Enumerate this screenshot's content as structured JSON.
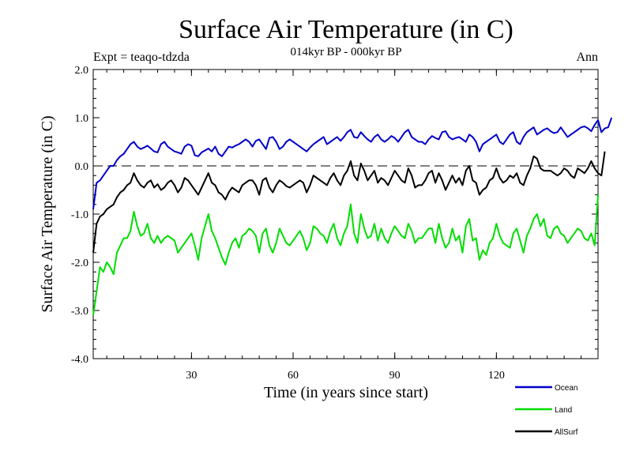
{
  "chart_data": {
    "type": "line",
    "title": "Surface Air Temperature (in C)",
    "subtitle": "014kyr BP - 000kyr BP",
    "experiment_label": "Expt = teaqo-tdzda",
    "season_label": "Ann",
    "xlabel": "Time (in years since start)",
    "ylabel": "Surface Air Temperature (in C)",
    "xlim": [
      1,
      150
    ],
    "ylim": [
      -4.0,
      2.0
    ],
    "x_ticks": [
      30,
      60,
      90,
      120
    ],
    "x_tick_labels": [
      "30",
      "60",
      "90",
      "120"
    ],
    "y_ticks": [
      -4,
      -3,
      -2,
      -1,
      0,
      1,
      2
    ],
    "y_tick_labels": [
      "-4.0",
      "-3.0",
      "-2.0",
      "-1.0",
      "0.0",
      "1.0",
      "2.0"
    ],
    "reference_line": 0.0,
    "legend_position": "bottom-right",
    "series": [
      {
        "name": "Ocean",
        "color": "#0000cc",
        "values": [
          -0.9,
          -0.35,
          -0.3,
          -0.2,
          -0.1,
          0.0,
          0.0,
          0.12,
          0.2,
          0.25,
          0.35,
          0.45,
          0.5,
          0.4,
          0.35,
          0.38,
          0.42,
          0.36,
          0.3,
          0.28,
          0.45,
          0.5,
          0.4,
          0.35,
          0.3,
          0.28,
          0.25,
          0.4,
          0.45,
          0.42,
          0.22,
          0.2,
          0.28,
          0.32,
          0.36,
          0.3,
          0.4,
          0.25,
          0.2,
          0.3,
          0.4,
          0.38,
          0.42,
          0.45,
          0.5,
          0.55,
          0.5,
          0.4,
          0.52,
          0.55,
          0.45,
          0.35,
          0.58,
          0.6,
          0.5,
          0.35,
          0.4,
          0.5,
          0.55,
          0.5,
          0.45,
          0.4,
          0.35,
          0.3,
          0.38,
          0.45,
          0.5,
          0.55,
          0.6,
          0.45,
          0.5,
          0.55,
          0.6,
          0.52,
          0.6,
          0.7,
          0.75,
          0.6,
          0.58,
          0.7,
          0.62,
          0.55,
          0.5,
          0.6,
          0.65,
          0.55,
          0.5,
          0.55,
          0.62,
          0.58,
          0.5,
          0.6,
          0.7,
          0.75,
          0.6,
          0.55,
          0.5,
          0.5,
          0.45,
          0.55,
          0.62,
          0.58,
          0.55,
          0.7,
          0.72,
          0.6,
          0.55,
          0.58,
          0.6,
          0.55,
          0.5,
          0.65,
          0.6,
          0.5,
          0.3,
          0.45,
          0.5,
          0.55,
          0.6,
          0.65,
          0.5,
          0.45,
          0.55,
          0.65,
          0.7,
          0.5,
          0.45,
          0.6,
          0.7,
          0.75,
          0.8,
          0.65,
          0.7,
          0.75,
          0.78,
          0.72,
          0.68,
          0.7,
          0.8,
          0.7,
          0.6,
          0.65,
          0.7,
          0.75,
          0.8,
          0.82,
          0.78,
          0.72,
          0.85,
          0.95,
          0.7,
          0.78,
          0.8,
          1.0
        ]
      },
      {
        "name": "Land",
        "color": "#00dd00",
        "values": [
          -3.1,
          -2.6,
          -2.1,
          -2.2,
          -2.0,
          -2.1,
          -2.25,
          -1.8,
          -1.65,
          -1.5,
          -1.5,
          -1.35,
          -0.95,
          -1.25,
          -1.45,
          -1.4,
          -1.2,
          -1.5,
          -1.6,
          -1.45,
          -1.6,
          -1.5,
          -1.45,
          -1.5,
          -1.55,
          -1.8,
          -1.7,
          -1.6,
          -1.5,
          -1.4,
          -1.65,
          -1.95,
          -1.5,
          -1.25,
          -1.0,
          -1.35,
          -1.5,
          -1.7,
          -1.9,
          -2.05,
          -1.8,
          -1.6,
          -1.5,
          -1.7,
          -1.45,
          -1.4,
          -1.3,
          -1.35,
          -1.45,
          -1.8,
          -1.4,
          -1.3,
          -1.65,
          -1.8,
          -1.6,
          -1.3,
          -1.45,
          -1.6,
          -1.65,
          -1.55,
          -1.45,
          -1.35,
          -1.5,
          -1.75,
          -1.6,
          -1.25,
          -1.3,
          -1.4,
          -1.45,
          -1.6,
          -1.35,
          -1.2,
          -1.5,
          -1.65,
          -1.4,
          -1.25,
          -0.8,
          -1.4,
          -1.6,
          -1.0,
          -1.3,
          -1.5,
          -1.45,
          -1.2,
          -1.55,
          -1.3,
          -1.5,
          -1.6,
          -1.4,
          -1.25,
          -1.35,
          -1.45,
          -1.5,
          -1.2,
          -1.35,
          -1.6,
          -1.5,
          -1.5,
          -1.4,
          -1.3,
          -1.3,
          -1.6,
          -1.2,
          -1.5,
          -1.7,
          -1.6,
          -1.3,
          -1.55,
          -1.45,
          -1.8,
          -1.25,
          -1.1,
          -1.55,
          -1.5,
          -1.95,
          -1.75,
          -1.85,
          -1.6,
          -1.5,
          -1.2,
          -1.45,
          -1.6,
          -1.65,
          -1.7,
          -1.4,
          -1.3,
          -1.55,
          -1.8,
          -1.45,
          -1.3,
          -1.1,
          -1.0,
          -1.25,
          -1.1,
          -1.45,
          -1.5,
          -1.3,
          -1.25,
          -1.4,
          -1.45,
          -1.6,
          -1.5,
          -1.4,
          -1.3,
          -1.35,
          -1.5,
          -1.55,
          -1.4,
          -1.65,
          -0.6
        ]
      },
      {
        "name": "AllSurf",
        "color": "#000000",
        "values": [
          -1.8,
          -1.2,
          -1.05,
          -1.0,
          -0.9,
          -0.85,
          -0.8,
          -0.65,
          -0.55,
          -0.5,
          -0.4,
          -0.35,
          -0.15,
          -0.3,
          -0.4,
          -0.45,
          -0.35,
          -0.3,
          -0.45,
          -0.38,
          -0.5,
          -0.45,
          -0.35,
          -0.3,
          -0.4,
          -0.55,
          -0.45,
          -0.25,
          -0.3,
          -0.4,
          -0.5,
          -0.6,
          -0.45,
          -0.3,
          -0.15,
          -0.35,
          -0.4,
          -0.55,
          -0.6,
          -0.7,
          -0.55,
          -0.45,
          -0.5,
          -0.55,
          -0.4,
          -0.35,
          -0.3,
          -0.3,
          -0.4,
          -0.6,
          -0.3,
          -0.25,
          -0.45,
          -0.55,
          -0.4,
          -0.3,
          -0.35,
          -0.42,
          -0.45,
          -0.4,
          -0.35,
          -0.3,
          -0.35,
          -0.55,
          -0.4,
          -0.2,
          -0.25,
          -0.3,
          -0.35,
          -0.4,
          -0.25,
          -0.15,
          -0.3,
          -0.4,
          -0.2,
          -0.1,
          0.1,
          -0.2,
          -0.3,
          0.05,
          -0.1,
          -0.3,
          -0.2,
          -0.1,
          -0.35,
          -0.25,
          -0.3,
          -0.4,
          -0.25,
          -0.1,
          -0.2,
          -0.3,
          -0.35,
          -0.05,
          -0.2,
          -0.45,
          -0.4,
          -0.4,
          -0.3,
          -0.15,
          -0.1,
          -0.35,
          -0.15,
          -0.3,
          -0.5,
          -0.35,
          -0.2,
          -0.35,
          -0.25,
          -0.4,
          -0.1,
          0.0,
          -0.3,
          -0.35,
          -0.6,
          -0.5,
          -0.45,
          -0.3,
          -0.25,
          -0.05,
          -0.25,
          -0.35,
          -0.3,
          -0.2,
          -0.25,
          -0.15,
          -0.35,
          -0.4,
          -0.2,
          -0.05,
          0.2,
          0.15,
          -0.05,
          -0.1,
          -0.1,
          -0.1,
          -0.15,
          -0.2,
          -0.15,
          -0.05,
          -0.1,
          -0.2,
          -0.25,
          -0.05,
          -0.1,
          -0.15,
          -0.05,
          0.1,
          -0.05,
          -0.15,
          -0.2,
          0.3
        ]
      }
    ]
  }
}
